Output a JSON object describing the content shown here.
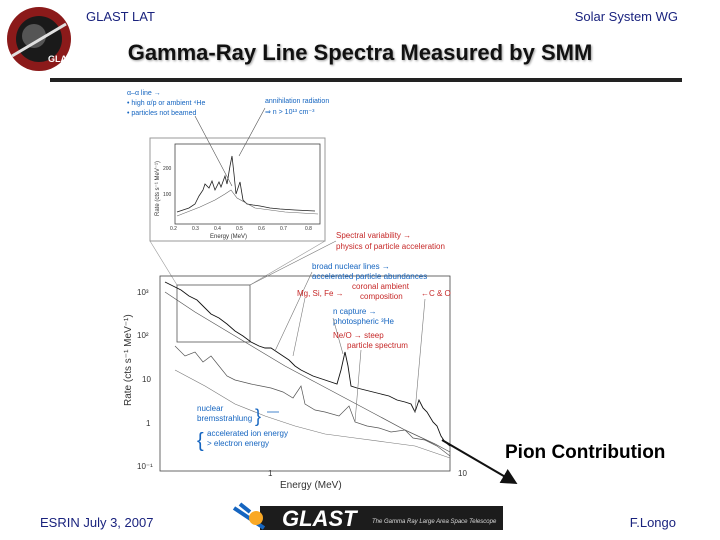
{
  "header": {
    "left": "GLAST LAT",
    "right": "Solar System WG"
  },
  "title": "Gamma-Ray Line Spectra Measured by SMM",
  "figure": {
    "inset": {
      "y_label": "Rate (cts s⁻¹ MeV⁻¹)",
      "x_label": "Energy (MeV)",
      "y_ticks": [
        "200",
        "100"
      ],
      "x_ticks": [
        "0.2",
        "0.3",
        "0.4",
        "0.5",
        "0.6",
        "0.7",
        "0.8"
      ],
      "note_line1": "α–α line →",
      "note_line2": "• high α/p or ambient ⁴He",
      "note_line3": "• particles not beamed",
      "annihilation_line1": "annihilation radiation",
      "annihilation_line2": "⇒ n > 10¹³ cm⁻³"
    },
    "main": {
      "y_label": "Rate (cts s⁻¹ MeV⁻¹)",
      "x_label": "Energy (MeV)",
      "y_ticks": [
        "10³",
        "10²",
        "10",
        "1",
        "10⁻¹"
      ],
      "x_ticks": [
        "1",
        "10"
      ]
    },
    "annotations": {
      "spectral_line1": "Spectral variability →",
      "spectral_line2": "physics of particle acceleration",
      "broad_line1": "broad nuclear lines →",
      "broad_line2": "accelerated particle abundances",
      "mgsife": "Mg, Si, Fe →",
      "coronal_line1": "coronal ambient",
      "coronal_line2": "composition",
      "cno": "←C & O",
      "ncapture_line1": "n capture →",
      "ncapture_line2": "photospheric ³He",
      "neo_line1": "Ne/O → steep",
      "neo_line2": "particle spectrum",
      "nuclear_line1": "nuclear",
      "nuclear_line2": "bremsstrahlung",
      "accel_line1": "accelerated ion energy",
      "accel_line2": "> electron energy"
    }
  },
  "pion_label": "Pion Contribution",
  "footer": {
    "left": "ESRIN July 3, 2007",
    "right": "F.Longo",
    "logo_text": "GLAST",
    "logo_tagline": "The Gamma Ray Large Area Space Telescope"
  },
  "seal": {
    "text": "GLAST"
  },
  "colors": {
    "header_text": "#1a237e",
    "annotation_red": "#c62828",
    "annotation_blue": "#1565c0"
  }
}
